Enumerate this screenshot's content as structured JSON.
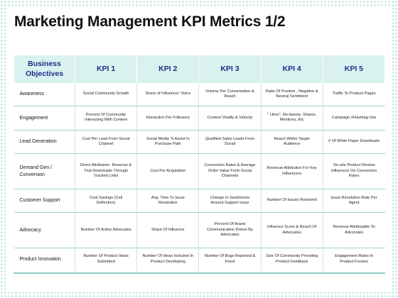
{
  "title": "Marketing Management KPI Metrics 1/2",
  "header": {
    "objectives": "Business Objectives",
    "kpis": [
      "KPI 1",
      "KPI 2",
      "KPI 3",
      "KPI 4",
      "KPI 5"
    ]
  },
  "rows": [
    {
      "objective": "Awareness",
      "cells": [
        "Social Community Growth",
        "Share of Influencer' Voice",
        "Volume Per Conversation & Reach",
        "Ratio Of Positive , Negative & Neutral Sentiment",
        "Traffic To Product Pages"
      ]
    },
    {
      "objective": "Engagement",
      "cells": [
        "Percent Of Community Interacting With Content",
        "Interaction Per Followers",
        "Content Virality & Velocity",
        "\" Likes\", Re-tweets, Shares, Mentions, Etc",
        "Campaign #Hashtag Use"
      ]
    },
    {
      "objective": "Lead Generation",
      "cells": [
        "Cost Per Lead From Social Channel",
        "Social Media 'S Assist In Purchase Path",
        "Qualified Sales Leads From Social",
        "Reach Within Target Audience",
        "# Of White Paper Downloads"
      ]
    },
    {
      "objective": "Demand Gen / Conversion",
      "cells": [
        "Direct Attribution- Revenue & Trial Downloads Through Tracked Links",
        "Cost Per Acquisition",
        "Conversion Rates & Average Order Value From Social Channels",
        "Revenue Attribution For Key Influencers",
        "On-site Product Review Influences On Conversion Rates"
      ]
    },
    {
      "objective": "Customer Support",
      "cells": [
        "Cost Savings (Call Deflection)",
        "Avg. Time To Issue Resolution",
        "Change In Sentiments Around Support Issue",
        "Number Of Issues Resolved",
        "Issue Resolution Rate Per Agent"
      ]
    },
    {
      "objective": "Advocacy",
      "cells": [
        "Number Of Active Advocates",
        "Share Of Influence",
        "Percent Of Brand Communication Driven By Advocates",
        "Influence Score & Reach Of Advocates",
        "Revenue Attributable To Advocates"
      ]
    },
    {
      "objective": "Product Innovation",
      "cells": [
        "Number Of Product Ideas Submitted",
        "Number Of Ideas Included In Product Developing",
        "Number Of Bugs Reported & Fixed",
        "Size Of Community Providing Product Feedback",
        "Engagement Rates In Product Forums"
      ]
    }
  ]
}
